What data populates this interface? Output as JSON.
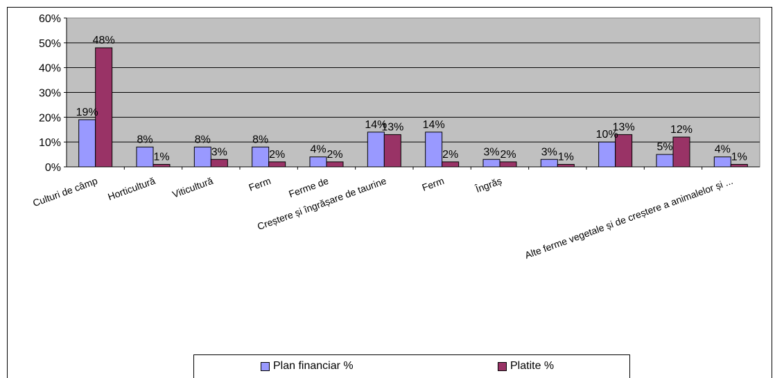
{
  "chart_data": {
    "type": "bar",
    "categories": [
      "Culturi de câmp",
      "Horticultură",
      "Viticultură",
      "Ferm",
      "Ferme de",
      "Creștere și îngrășare de taurine",
      "Ferm",
      "Îngrăș",
      "",
      "",
      "",
      "Alte ferme vegetale și de creștere a animalelor și ..."
    ],
    "series": [
      {
        "name": "Plan financiar %",
        "color": "#9999ff",
        "values": [
          19,
          8,
          8,
          8,
          4,
          14,
          14,
          3,
          3,
          10,
          5,
          4
        ]
      },
      {
        "name": "Platite %",
        "color": "#993366",
        "values": [
          48,
          1,
          3,
          2,
          2,
          13,
          2,
          2,
          1,
          13,
          12,
          1
        ]
      }
    ],
    "data_labels": [
      [
        "19%",
        "8%",
        "8%",
        "8%",
        "4%",
        "14%",
        "14%",
        "3%",
        "3%",
        "10%",
        "5%",
        "4%"
      ],
      [
        "48%",
        "1%",
        "3%",
        "2%",
        "2%",
        "13%",
        "2%",
        "2%",
        "1%",
        "13%",
        "12%",
        "1%"
      ]
    ],
    "yticks": [
      "0%",
      "10%",
      "20%",
      "30%",
      "40%",
      "50%",
      "60%"
    ],
    "ylim": [
      0,
      60
    ],
    "grid": true,
    "plot_background": "#c0c0c0",
    "legend_position": "bottom"
  }
}
